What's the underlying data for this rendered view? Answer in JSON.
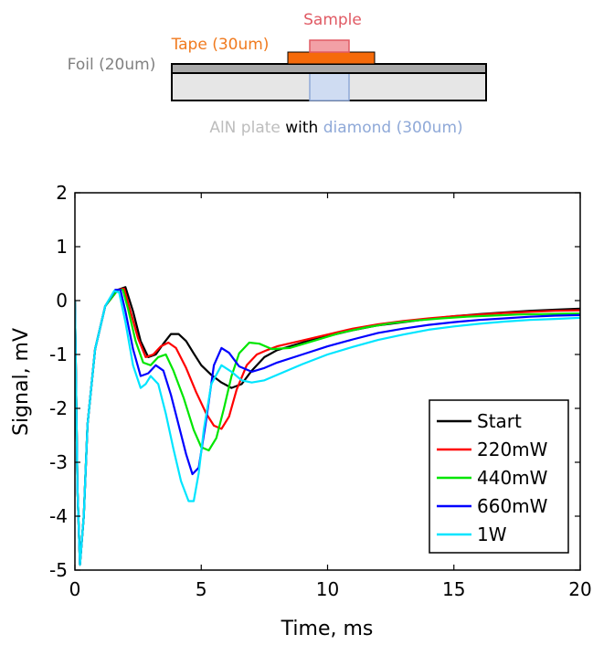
{
  "diagram": {
    "sample_label": "Sample",
    "tape_label": "Tape (30um)",
    "foil_label": "Foil (20um)",
    "plate_label_part1": "AlN plate",
    "plate_label_part2": " with ",
    "plate_label_part3": "diamond (300um)",
    "colors": {
      "sample": "#e05a64",
      "sample_fill": "#f2a0a6",
      "tape": "#f07a1e",
      "tape_fill": "#f56a0a",
      "foil": "#808080",
      "foil_fill": "#a9a9a9",
      "plate_text": "#bdbdbd",
      "plate_fill": "#e6e6e6",
      "diamond": "#8fa9d8",
      "diamond_fill": "#cfdcf2",
      "with_text": "#000000"
    }
  },
  "chart_data": {
    "type": "line",
    "title": "",
    "xlabel": "Time, ms",
    "ylabel": "Signal, mV",
    "xlim": [
      0,
      20
    ],
    "ylim": [
      -5,
      2
    ],
    "xticks": [
      0,
      5,
      10,
      15,
      20
    ],
    "yticks": [
      -5,
      -4,
      -3,
      -2,
      -1,
      0,
      1,
      2
    ],
    "grid": false,
    "legend_position": "bottom-right",
    "series": [
      {
        "name": "Start",
        "color": "#000000",
        "x": [
          0,
          0.1,
          0.2,
          0.35,
          0.5,
          0.8,
          1.2,
          1.7,
          2.0,
          2.3,
          2.6,
          2.9,
          3.2,
          3.5,
          3.8,
          4.1,
          4.4,
          4.7,
          5.0,
          5.4,
          5.8,
          6.2,
          6.6,
          7.0,
          7.5,
          8.0,
          9.0,
          10.0,
          11.0,
          12.0,
          13.0,
          14.0,
          15.0,
          16.0,
          17.0,
          18.0,
          19.0,
          20.0
        ],
        "y": [
          0.0,
          -3.5,
          -4.9,
          -4.0,
          -2.3,
          -0.9,
          -0.1,
          0.2,
          0.25,
          -0.2,
          -0.75,
          -1.05,
          -1.0,
          -0.8,
          -0.62,
          -0.62,
          -0.75,
          -0.98,
          -1.2,
          -1.38,
          -1.52,
          -1.62,
          -1.55,
          -1.3,
          -1.05,
          -0.92,
          -0.78,
          -0.66,
          -0.55,
          -0.46,
          -0.4,
          -0.34,
          -0.29,
          -0.25,
          -0.22,
          -0.19,
          -0.17,
          -0.15
        ]
      },
      {
        "name": "220mW",
        "color": "#ff0000",
        "x": [
          0,
          0.1,
          0.2,
          0.35,
          0.5,
          0.8,
          1.2,
          1.7,
          1.95,
          2.2,
          2.5,
          2.8,
          3.1,
          3.4,
          3.7,
          4.0,
          4.4,
          4.8,
          5.2,
          5.5,
          5.8,
          6.1,
          6.4,
          6.8,
          7.2,
          7.6,
          8.0,
          9.0,
          10.0,
          11.0,
          12.0,
          13.0,
          14.0,
          15.0,
          16.0,
          17.0,
          18.0,
          19.0,
          20.0
        ],
        "y": [
          0.0,
          -3.5,
          -4.9,
          -4.0,
          -2.3,
          -0.9,
          -0.1,
          0.2,
          0.22,
          -0.2,
          -0.7,
          -1.05,
          -1.0,
          -0.85,
          -0.78,
          -0.88,
          -1.25,
          -1.7,
          -2.1,
          -2.32,
          -2.38,
          -2.15,
          -1.65,
          -1.2,
          -1.0,
          -0.92,
          -0.85,
          -0.74,
          -0.63,
          -0.52,
          -0.44,
          -0.38,
          -0.33,
          -0.29,
          -0.26,
          -0.23,
          -0.21,
          -0.19,
          -0.18
        ]
      },
      {
        "name": "440mW",
        "color": "#00e600",
        "x": [
          0,
          0.1,
          0.2,
          0.35,
          0.5,
          0.8,
          1.2,
          1.7,
          1.9,
          2.1,
          2.4,
          2.7,
          3.0,
          3.3,
          3.6,
          3.9,
          4.3,
          4.7,
          5.0,
          5.3,
          5.6,
          5.9,
          6.2,
          6.5,
          6.9,
          7.3,
          7.8,
          8.5,
          9.5,
          10.5,
          11.5,
          12.5,
          13.5,
          14.5,
          15.5,
          16.5,
          17.5,
          18.5,
          19.5,
          20.0
        ],
        "y": [
          0.0,
          -3.5,
          -4.9,
          -4.0,
          -2.3,
          -0.9,
          -0.1,
          0.2,
          0.2,
          -0.15,
          -0.75,
          -1.15,
          -1.2,
          -1.05,
          -1.0,
          -1.3,
          -1.8,
          -2.4,
          -2.72,
          -2.78,
          -2.55,
          -2.0,
          -1.4,
          -0.98,
          -0.78,
          -0.8,
          -0.9,
          -0.88,
          -0.74,
          -0.6,
          -0.5,
          -0.42,
          -0.37,
          -0.33,
          -0.3,
          -0.28,
          -0.26,
          -0.25,
          -0.24,
          -0.24
        ]
      },
      {
        "name": "660mW",
        "color": "#0000ff",
        "x": [
          0,
          0.1,
          0.2,
          0.35,
          0.5,
          0.8,
          1.2,
          1.6,
          1.8,
          2.0,
          2.3,
          2.6,
          2.9,
          3.2,
          3.5,
          3.8,
          4.1,
          4.4,
          4.65,
          4.9,
          5.2,
          5.5,
          5.8,
          6.1,
          6.5,
          7.0,
          7.5,
          8.0,
          9.0,
          10.0,
          11.0,
          12.0,
          13.0,
          14.0,
          15.0,
          16.0,
          17.0,
          18.0,
          19.0,
          20.0
        ],
        "y": [
          0.0,
          -3.5,
          -4.9,
          -4.0,
          -2.3,
          -0.9,
          -0.1,
          0.2,
          0.2,
          -0.2,
          -0.9,
          -1.4,
          -1.35,
          -1.2,
          -1.3,
          -1.75,
          -2.3,
          -2.85,
          -3.22,
          -3.1,
          -2.2,
          -1.2,
          -0.88,
          -0.97,
          -1.22,
          -1.32,
          -1.25,
          -1.15,
          -1.0,
          -0.85,
          -0.72,
          -0.6,
          -0.52,
          -0.45,
          -0.4,
          -0.36,
          -0.33,
          -0.3,
          -0.28,
          -0.27
        ]
      },
      {
        "name": "1W",
        "color": "#00e5ff",
        "x": [
          0,
          0.1,
          0.2,
          0.35,
          0.5,
          0.8,
          1.2,
          1.55,
          1.75,
          2.0,
          2.3,
          2.6,
          2.8,
          3.0,
          3.3,
          3.6,
          3.9,
          4.2,
          4.5,
          4.7,
          4.9,
          5.1,
          5.4,
          5.8,
          6.2,
          6.6,
          7.0,
          7.5,
          8.0,
          9.0,
          10.0,
          11.0,
          12.0,
          13.0,
          14.0,
          15.0,
          16.0,
          17.0,
          18.0,
          19.0,
          20.0
        ],
        "y": [
          0.0,
          -3.5,
          -4.9,
          -4.0,
          -2.3,
          -0.9,
          -0.1,
          0.18,
          0.15,
          -0.4,
          -1.2,
          -1.62,
          -1.55,
          -1.4,
          -1.55,
          -2.1,
          -2.75,
          -3.35,
          -3.72,
          -3.72,
          -3.2,
          -2.4,
          -1.55,
          -1.2,
          -1.32,
          -1.48,
          -1.52,
          -1.48,
          -1.38,
          -1.18,
          -1.0,
          -0.86,
          -0.73,
          -0.63,
          -0.54,
          -0.48,
          -0.43,
          -0.39,
          -0.36,
          -0.34,
          -0.32
        ]
      }
    ]
  }
}
